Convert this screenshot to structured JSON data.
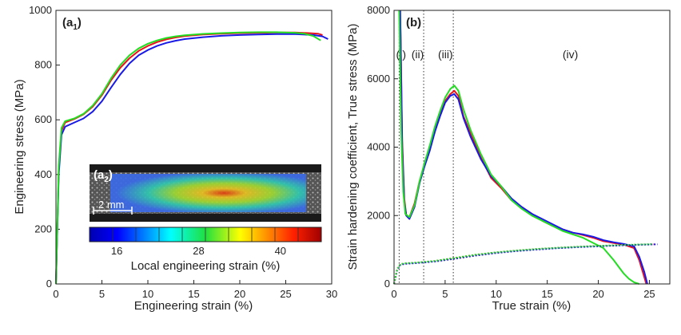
{
  "chart_data": [
    {
      "type": "line",
      "panel": "a1",
      "panel_label": "(a",
      "panel_sub": "1",
      "xlabel": "Engineering strain (%)",
      "ylabel": "Engineering stress (MPa)",
      "xlim": [
        0,
        30
      ],
      "ylim": [
        0,
        1000
      ],
      "xticks": [
        "0",
        "5",
        "10",
        "15",
        "20",
        "25",
        "30"
      ],
      "yticks": [
        "0",
        "200",
        "400",
        "600",
        "800",
        "1000"
      ],
      "series": [
        {
          "name": "red",
          "color": "#e8141b",
          "x": [
            0,
            0.3,
            0.6,
            1.0,
            2.0,
            3.0,
            4.0,
            5.0,
            6.0,
            7.0,
            8.0,
            9.0,
            10.0,
            11.0,
            12.0,
            13.0,
            14.0,
            16.0,
            18.0,
            20.0,
            22.0,
            24.0,
            26.0,
            27.5,
            28.5,
            29.0
          ],
          "y": [
            0,
            420,
            560,
            590,
            603,
            620,
            648,
            690,
            745,
            790,
            825,
            852,
            870,
            884,
            894,
            901,
            906,
            912,
            915,
            917,
            918,
            919,
            919,
            917,
            915,
            910
          ]
        },
        {
          "name": "blue",
          "color": "#1a1ae6",
          "x": [
            0,
            0.3,
            0.6,
            1.0,
            2.0,
            3.0,
            4.0,
            5.0,
            6.0,
            7.0,
            8.0,
            9.0,
            10.0,
            11.0,
            12.0,
            13.0,
            14.0,
            16.0,
            18.0,
            20.0,
            22.0,
            24.0,
            26.0,
            28.0,
            29.0,
            29.6
          ],
          "y": [
            0,
            400,
            545,
            575,
            590,
            605,
            630,
            668,
            718,
            766,
            806,
            836,
            855,
            870,
            881,
            889,
            895,
            902,
            907,
            910,
            912,
            913,
            913,
            910,
            905,
            895
          ]
        },
        {
          "name": "green",
          "color": "#22dd22",
          "x": [
            0,
            0.3,
            0.6,
            1.0,
            2.0,
            3.0,
            4.0,
            5.0,
            6.0,
            7.0,
            8.0,
            9.0,
            10.0,
            11.0,
            12.0,
            13.0,
            14.0,
            16.0,
            18.0,
            20.0,
            22.0,
            24.0,
            26.0,
            27.0,
            28.0,
            28.8
          ],
          "y": [
            0,
            430,
            570,
            595,
            605,
            622,
            652,
            695,
            752,
            800,
            836,
            861,
            878,
            890,
            899,
            905,
            909,
            914,
            917,
            919,
            920,
            920,
            918,
            915,
            906,
            890
          ]
        }
      ]
    },
    {
      "type": "line",
      "panel": "b",
      "panel_label": "(b)",
      "xlabel": "True strain (%)",
      "ylabel": "Strain hardening coefficient, True stress (MPa)",
      "xlim": [
        0,
        27
      ],
      "ylim": [
        0,
        8000
      ],
      "xticks": [
        "0",
        "5",
        "10",
        "15",
        "20",
        "25"
      ],
      "yticks": [
        "0",
        "2000",
        "4000",
        "6000",
        "8000"
      ],
      "region_lines_x": [
        0.5,
        2.9,
        5.8
      ],
      "regions": [
        {
          "label": "(i)",
          "x": 0.2
        },
        {
          "label": "(ii)",
          "x": 1.7
        },
        {
          "label": "(iii)",
          "x": 4.3
        },
        {
          "label": "(iv)",
          "x": 16.5
        }
      ],
      "region_label_y": 6600,
      "series": [
        {
          "name": "red hardening",
          "color": "#e8141b",
          "style": "solid",
          "x": [
            0.6,
            0.8,
            1.0,
            1.2,
            1.5,
            2.0,
            2.5,
            3.0,
            3.5,
            4.0,
            4.5,
            5.0,
            5.5,
            5.9,
            6.3,
            6.8,
            7.5,
            8.5,
            9.5,
            10.5,
            11.5,
            12.5,
            13.5,
            14.5,
            15.5,
            16.5,
            17.5,
            18.5,
            19.5,
            20.5,
            21.5,
            22.5,
            23.5,
            24.0,
            24.4,
            24.7
          ],
          "y": [
            8000,
            4200,
            2500,
            2000,
            1950,
            2350,
            3000,
            3500,
            3950,
            4500,
            5000,
            5350,
            5550,
            5650,
            5500,
            4900,
            4400,
            3700,
            3100,
            2800,
            2450,
            2250,
            2050,
            1850,
            1700,
            1600,
            1500,
            1430,
            1350,
            1250,
            1200,
            1150,
            1050,
            700,
            300,
            0
          ]
        },
        {
          "name": "blue hardening",
          "color": "#1a1ae6",
          "style": "solid",
          "x": [
            0.6,
            0.8,
            1.0,
            1.2,
            1.5,
            2.0,
            2.5,
            3.0,
            3.5,
            4.0,
            4.5,
            5.0,
            5.5,
            5.9,
            6.3,
            6.8,
            7.5,
            8.5,
            9.5,
            10.5,
            11.5,
            12.5,
            13.5,
            14.5,
            15.5,
            16.5,
            17.5,
            18.5,
            19.5,
            20.5,
            21.5,
            22.5,
            23.5,
            24.0,
            24.5,
            24.8
          ],
          "y": [
            8000,
            4000,
            2400,
            2000,
            1900,
            2250,
            2950,
            3450,
            3900,
            4450,
            4900,
            5300,
            5500,
            5550,
            5400,
            4850,
            4300,
            3650,
            3150,
            2850,
            2500,
            2250,
            2050,
            1900,
            1750,
            1600,
            1500,
            1450,
            1380,
            1280,
            1220,
            1170,
            1100,
            800,
            350,
            0
          ]
        },
        {
          "name": "green hardening",
          "color": "#22dd22",
          "style": "solid",
          "x": [
            0.5,
            0.7,
            0.9,
            1.1,
            1.5,
            2.0,
            2.5,
            3.0,
            3.5,
            4.0,
            4.5,
            5.0,
            5.5,
            5.9,
            6.3,
            6.8,
            7.5,
            8.5,
            9.5,
            10.5,
            11.5,
            12.5,
            13.5,
            14.5,
            15.5,
            16.5,
            17.5,
            18.5,
            19.5,
            20.5,
            21.5,
            22.0,
            22.5,
            23.0,
            23.5,
            24.0
          ],
          "y": [
            8000,
            4500,
            2700,
            2050,
            1950,
            2300,
            3000,
            3550,
            4050,
            4600,
            5050,
            5450,
            5700,
            5800,
            5650,
            5100,
            4500,
            3800,
            3200,
            2850,
            2450,
            2200,
            2000,
            1850,
            1700,
            1550,
            1450,
            1350,
            1200,
            1050,
            700,
            500,
            300,
            150,
            50,
            0
          ]
        },
        {
          "name": "red true stress",
          "color": "#e8141b",
          "style": "dotted",
          "x": [
            0,
            0.3,
            0.6,
            1.0,
            2.0,
            4.0,
            6.0,
            8.0,
            10.0,
            12.0,
            14.0,
            16.0,
            18.0,
            20.0,
            22.0,
            24.0,
            25.5
          ],
          "y": [
            0,
            420,
            565,
            600,
            615,
            670,
            760,
            850,
            920,
            975,
            1020,
            1055,
            1085,
            1110,
            1130,
            1150,
            1160
          ]
        },
        {
          "name": "blue true stress",
          "color": "#1a1ae6",
          "style": "dotted",
          "x": [
            0,
            0.3,
            0.6,
            1.0,
            2.0,
            4.0,
            6.0,
            8.0,
            10.0,
            12.0,
            14.0,
            16.0,
            18.0,
            20.0,
            22.0,
            24.0,
            25.8
          ],
          "y": [
            0,
            400,
            550,
            585,
            605,
            655,
            740,
            830,
            905,
            960,
            1005,
            1045,
            1075,
            1100,
            1125,
            1145,
            1160
          ]
        },
        {
          "name": "green true stress",
          "color": "#22dd22",
          "style": "dotted",
          "x": [
            0,
            0.3,
            0.6,
            1.0,
            2.0,
            4.0,
            6.0,
            8.0,
            10.0,
            12.0,
            14.0,
            16.0,
            18.0,
            20.0,
            22.0,
            24.0,
            25.3
          ],
          "y": [
            0,
            430,
            575,
            605,
            620,
            675,
            765,
            855,
            925,
            980,
            1025,
            1060,
            1090,
            1115,
            1135,
            1155,
            1165
          ]
        }
      ]
    }
  ],
  "inset": {
    "panel_label": "(a",
    "panel_sub": "2",
    "scale_bar_label": "2 mm",
    "colorbar_ticks": [
      "16",
      "28",
      "40"
    ],
    "colorbar_range": [
      12,
      46
    ],
    "colorbar_label": "Local engineering strain (%)"
  }
}
